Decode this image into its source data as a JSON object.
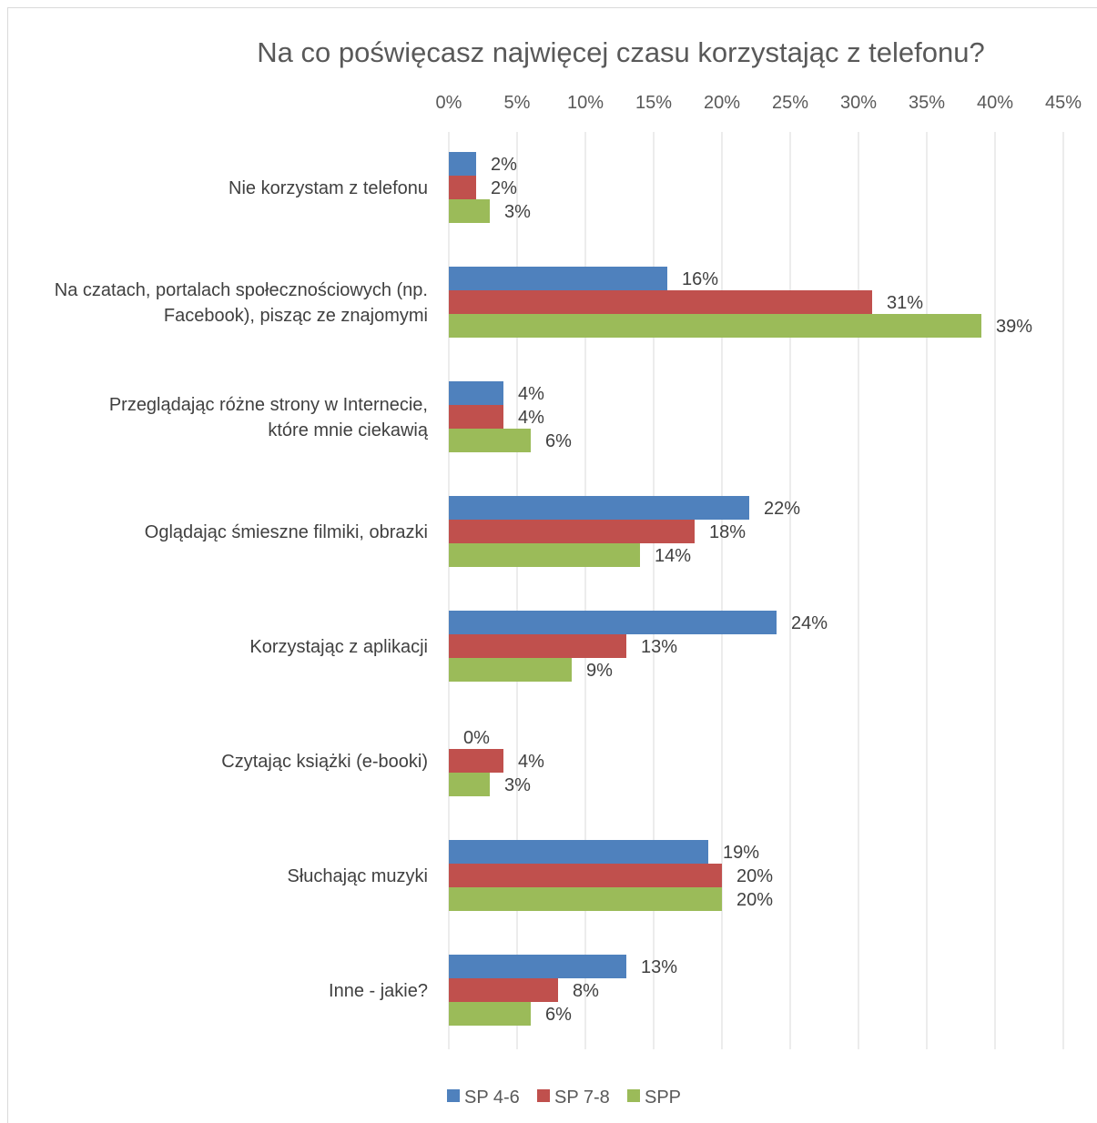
{
  "chart_data": {
    "type": "bar",
    "orientation": "horizontal",
    "title": "Na co poświęcasz najwięcej czasu korzystając z telefonu?",
    "xlabel": "",
    "ylabel": "",
    "xlim": [
      0,
      45
    ],
    "ticks": [
      0,
      5,
      10,
      15,
      20,
      25,
      30,
      35,
      40,
      45
    ],
    "tick_labels": [
      "0%",
      "5%",
      "10%",
      "15%",
      "20%",
      "25%",
      "30%",
      "35%",
      "40%",
      "45%"
    ],
    "x_axis_position": "top",
    "grid": "vertical",
    "legend_position": "bottom",
    "categories": [
      [
        "Nie korzystam z telefonu"
      ],
      [
        "Na czatach, portalach społecznościowych (np.",
        "Facebook), pisząc ze znajomymi"
      ],
      [
        "Przeglądając różne strony w Internecie,",
        "które mnie ciekawią"
      ],
      [
        "Oglądając śmieszne filmiki, obrazki"
      ],
      [
        "Korzystając z aplikacji"
      ],
      [
        "Czytając książki (e-booki)"
      ],
      [
        "Słuchając muzyki"
      ],
      [
        "Inne - jakie?"
      ]
    ],
    "series": [
      {
        "name": "SP 4-6",
        "color": "#4f81bd",
        "values": [
          2,
          16,
          4,
          22,
          24,
          0,
          19,
          13
        ],
        "labels": [
          "2%",
          "16%",
          "4%",
          "22%",
          "24%",
          "0%",
          "19%",
          "13%"
        ]
      },
      {
        "name": "SP 7-8",
        "color": "#c0504d",
        "values": [
          2,
          31,
          4,
          18,
          13,
          4,
          20,
          8
        ],
        "labels": [
          "2%",
          "31%",
          "4%",
          "18%",
          "13%",
          "4%",
          "20%",
          "8%"
        ]
      },
      {
        "name": "SPP",
        "color": "#9bbb59",
        "values": [
          3,
          39,
          6,
          14,
          9,
          3,
          20,
          6
        ],
        "labels": [
          "3%",
          "39%",
          "6%",
          "14%",
          "9%",
          "3%",
          "20%",
          "6%"
        ]
      }
    ]
  }
}
